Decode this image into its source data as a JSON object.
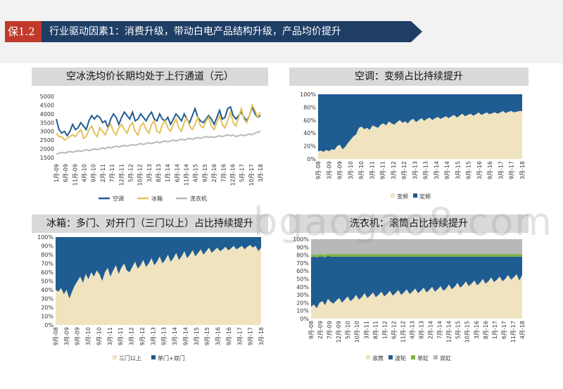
{
  "header": {
    "tag": "保1.2",
    "title": "行业驱动因素1：消费升级，带动白电产品结构升级，产品均价提升"
  },
  "colors": {
    "blue": "#1f5c92",
    "cream": "#efe3c0",
    "yellow": "#e3c15a",
    "gray": "#b8b8b8",
    "green": "#7cb342",
    "navy": "#1f3e66",
    "red": "#c0392b"
  },
  "watermark": "bgaogao8.com",
  "chart_data": [
    {
      "type": "line",
      "title": "空冰洗均价长期均处于上行通道（元）",
      "x_ticks": [
        "1月-09",
        "6月-09",
        "11月-09",
        "4月-10",
        "9月-10",
        "2月-11",
        "7月-11",
        "12月-11",
        "5月-12",
        "10月-12",
        "3月-13",
        "8月-13",
        "1月-14",
        "6月-14",
        "11月-14",
        "4月-15",
        "9月-15",
        "2月-16",
        "7月-16",
        "12月-16",
        "5月-17",
        "10月-17",
        "3月-18"
      ],
      "y_ticks": [
        "5000",
        "4500",
        "4000",
        "3500",
        "3000",
        "2500",
        "2000",
        "1500"
      ],
      "ylim": [
        1500,
        5000
      ],
      "series": [
        {
          "name": "空调",
          "values": [
            3700,
            3100,
            2900,
            3000,
            2750,
            3000,
            3400,
            3100,
            3200,
            3500,
            3300,
            3100,
            3600,
            3900,
            3700,
            3900,
            3800,
            3500,
            3600,
            3200,
            3700,
            4000,
            3800,
            3400,
            3800,
            4100,
            3900,
            3700,
            4100,
            3600,
            3700,
            4000,
            3800,
            3600,
            3900,
            4100,
            3700,
            3600,
            4000,
            3700,
            3600,
            3800,
            3400,
            3700,
            4000,
            3800,
            3600,
            4000,
            3700,
            3500,
            3900,
            4300,
            3800,
            3600,
            3500,
            3700,
            3900,
            3700,
            3400,
            3800,
            4200,
            3700,
            3800,
            4300,
            4400,
            3900,
            3700,
            3900,
            4100,
            3800,
            3600,
            3900,
            4400,
            4000,
            3800,
            3900
          ]
        },
        {
          "name": "冰箱",
          "values": [
            2900,
            2700,
            2700,
            2500,
            2600,
            2700,
            2800,
            2700,
            2900,
            3100,
            2600,
            2700,
            3100,
            3300,
            2900,
            2700,
            3200,
            3000,
            2800,
            3200,
            3400,
            3000,
            2800,
            3200,
            3400,
            3100,
            2900,
            3300,
            3500,
            3000,
            2800,
            3300,
            3500,
            3100,
            2900,
            3400,
            3600,
            3000,
            2900,
            3400,
            3600,
            3200,
            3000,
            3400,
            3700,
            3200,
            3000,
            3500,
            3800,
            3300,
            3100,
            3400,
            3800,
            3300,
            3200,
            3600,
            3800,
            3300,
            3100,
            3500,
            3900,
            3400,
            3200,
            3600,
            4100,
            3500,
            3300,
            3800,
            4300,
            3700,
            3500,
            3900,
            4500,
            4200,
            3800,
            4100
          ]
        },
        {
          "name": "洗衣机",
          "values": [
            1700,
            1750,
            1800,
            1750,
            1800,
            1850,
            1800,
            1850,
            1900,
            1850,
            1900,
            1950,
            1900,
            1950,
            2000,
            1950,
            2000,
            2050,
            2000,
            2100,
            2050,
            2100,
            2150,
            2100,
            2150,
            2200,
            2150,
            2200,
            2250,
            2200,
            2250,
            2300,
            2250,
            2300,
            2350,
            2300,
            2350,
            2400,
            2350,
            2400,
            2450,
            2400,
            2450,
            2500,
            2450,
            2500,
            2550,
            2500,
            2550,
            2600,
            2550,
            2600,
            2650,
            2600,
            2650,
            2700,
            2650,
            2700,
            2650,
            2700,
            2750,
            2700,
            2750,
            2800,
            2750,
            2800,
            2700,
            2750,
            2800,
            2750,
            2800,
            2850,
            2800,
            2900,
            2950,
            3000
          ]
        }
      ]
    },
    {
      "type": "area",
      "title": "空调：变频占比持续提升",
      "x_ticks": [
        "9月-08",
        "3月-09",
        "9月-09",
        "3月-10",
        "9月-10",
        "3月-11",
        "9月-11",
        "3月-12",
        "9月-12",
        "3月-13",
        "9月-13",
        "3月-14",
        "9月-14",
        "3月-15",
        "9月-15",
        "3月-16",
        "9月-16",
        "3月-17",
        "9月-17",
        "3月-18"
      ],
      "y_ticks": [
        "100%",
        "80%",
        "60%",
        "40%",
        "20%",
        "0%"
      ],
      "series": [
        {
          "name": "变频",
          "values": [
            12,
            13,
            11,
            14,
            12,
            15,
            14,
            20,
            22,
            15,
            19,
            25,
            30,
            35,
            38,
            48,
            50,
            46,
            48,
            45,
            52,
            50,
            48,
            53,
            55,
            52,
            58,
            55,
            53,
            57,
            60,
            56,
            58,
            55,
            60,
            62,
            57,
            60,
            63,
            59,
            62,
            64,
            60,
            63,
            65,
            62,
            64,
            66,
            63,
            66,
            68,
            64,
            67,
            70,
            66,
            68,
            70,
            67,
            69,
            72,
            68,
            70,
            72,
            69,
            71,
            72,
            70,
            72,
            74,
            71,
            73,
            74,
            72,
            73,
            74,
            74
          ]
        },
        {
          "name": "定频",
          "values": [
            88,
            87,
            89,
            86,
            88,
            85,
            86,
            80,
            78,
            85,
            81,
            75,
            70,
            65,
            62,
            52,
            50,
            54,
            52,
            55,
            48,
            50,
            52,
            47,
            45,
            48,
            42,
            45,
            47,
            43,
            40,
            44,
            42,
            45,
            40,
            38,
            43,
            40,
            37,
            41,
            38,
            36,
            40,
            37,
            35,
            38,
            36,
            34,
            37,
            34,
            32,
            36,
            33,
            30,
            34,
            32,
            30,
            33,
            31,
            28,
            32,
            30,
            28,
            31,
            29,
            28,
            30,
            28,
            26,
            29,
            27,
            26,
            28,
            27,
            26,
            26
          ]
        }
      ]
    },
    {
      "type": "area",
      "title": "冰箱：多门、对开门（三门以上）占比持续提升",
      "x_ticks": [
        "9月-08",
        "3月-09",
        "9月-09",
        "3月-10",
        "9月-10",
        "3月-11",
        "9月-11",
        "3月-12",
        "9月-12",
        "3月-13",
        "9月-13",
        "3月-14",
        "9月-14",
        "3月-15",
        "9月-15",
        "3月-16",
        "9月-16",
        "3月-17",
        "9月-17",
        "3月-18"
      ],
      "y_ticks": [
        "100%",
        "90%",
        "80%",
        "70%",
        "60%",
        "50%",
        "40%",
        "30%",
        "20%",
        "10%",
        "0%"
      ],
      "series": [
        {
          "name": "三门以上",
          "values": [
            40,
            38,
            42,
            35,
            40,
            30,
            38,
            45,
            50,
            55,
            48,
            58,
            52,
            60,
            55,
            62,
            58,
            50,
            60,
            65,
            55,
            62,
            68,
            58,
            65,
            70,
            62,
            60,
            66,
            72,
            64,
            68,
            74,
            66,
            70,
            76,
            68,
            72,
            78,
            70,
            74,
            80,
            72,
            76,
            82,
            74,
            78,
            84,
            76,
            80,
            85,
            78,
            82,
            86,
            80,
            84,
            88,
            82,
            85,
            88,
            84,
            86,
            89,
            85,
            87,
            90,
            86,
            88,
            90,
            86,
            89,
            91,
            88,
            90,
            84,
            88
          ]
        },
        {
          "name": "单门+双门",
          "values": [
            60,
            62,
            58,
            65,
            60,
            70,
            62,
            55,
            50,
            45,
            52,
            42,
            48,
            40,
            45,
            38,
            42,
            50,
            40,
            35,
            45,
            38,
            32,
            42,
            35,
            30,
            38,
            40,
            34,
            28,
            36,
            32,
            26,
            34,
            30,
            24,
            32,
            28,
            22,
            30,
            26,
            20,
            28,
            24,
            18,
            26,
            22,
            16,
            24,
            20,
            15,
            22,
            18,
            14,
            20,
            16,
            12,
            18,
            15,
            12,
            16,
            14,
            11,
            15,
            13,
            10,
            14,
            12,
            10,
            14,
            11,
            9,
            12,
            10,
            16,
            12
          ]
        }
      ]
    },
    {
      "type": "area",
      "title": "洗衣机：滚筒占比持续提升",
      "x_ticks": [
        "9月-08",
        "2月-09",
        "7月-09",
        "12月-09",
        "5月-10",
        "10月-10",
        "3月-11",
        "8月-11",
        "1月-12",
        "6月-12",
        "11月-12",
        "4月-13",
        "9月-13",
        "2月-14",
        "7月-14",
        "12月-14",
        "5月-15",
        "10月-15",
        "3月-16",
        "8月-16",
        "1月-17",
        "6月-17",
        "11月-17",
        "4月-18"
      ],
      "y_ticks": [
        "100%",
        "90%",
        "80%",
        "70%",
        "60%",
        "50%",
        "40%",
        "30%",
        "20%",
        "10%",
        "0%"
      ],
      "series": [
        {
          "name": "滚筒",
          "values": [
            15,
            18,
            13,
            20,
            22,
            17,
            25,
            21,
            19,
            23,
            26,
            20,
            24,
            28,
            22,
            25,
            30,
            24,
            27,
            32,
            26,
            29,
            33,
            27,
            30,
            34,
            28,
            31,
            35,
            29,
            32,
            36,
            30,
            33,
            37,
            31,
            34,
            38,
            32,
            35,
            39,
            33,
            36,
            40,
            34,
            37,
            41,
            35,
            38,
            43,
            37,
            40,
            45,
            39,
            42,
            47,
            41,
            44,
            48,
            42,
            45,
            50,
            44,
            47,
            52,
            46,
            49,
            53,
            47,
            50,
            55,
            49,
            52,
            56,
            48,
            55
          ]
        },
        {
          "name": "波轮",
          "values": [
            62,
            60,
            64,
            58,
            56,
            60,
            54,
            57,
            59,
            55,
            52,
            58,
            54,
            50,
            56,
            53,
            48,
            54,
            51,
            46,
            52,
            49,
            45,
            51,
            48,
            44,
            50,
            47,
            43,
            49,
            46,
            42,
            48,
            45,
            41,
            47,
            44,
            40,
            46,
            43,
            39,
            45,
            42,
            38,
            44,
            41,
            37,
            43,
            40,
            35,
            41,
            38,
            33,
            39,
            36,
            31,
            37,
            34,
            30,
            36,
            33,
            28,
            34,
            31,
            26,
            32,
            29,
            25,
            31,
            28,
            23,
            29,
            26,
            22,
            30,
            23
          ]
        },
        {
          "name": "单缸",
          "values": [
            3,
            3,
            3,
            3,
            3,
            3,
            3,
            3,
            3,
            3,
            3,
            3,
            3,
            3,
            3,
            3,
            3,
            3,
            3,
            3,
            3,
            3,
            3,
            3,
            3,
            3,
            3,
            3,
            3,
            3,
            3,
            3,
            3,
            3,
            3,
            3,
            3,
            3,
            3,
            3,
            3,
            3,
            3,
            3,
            3,
            3,
            3,
            3,
            3,
            3,
            3,
            3,
            3,
            3,
            3,
            3,
            3,
            3,
            3,
            3,
            3,
            3,
            3,
            3,
            3,
            3,
            3,
            3,
            3,
            3,
            3,
            3,
            3,
            3,
            3,
            3
          ]
        },
        {
          "name": "双缸",
          "values": [
            20,
            19,
            20,
            19,
            19,
            20,
            18,
            19,
            19,
            19,
            19,
            19,
            19,
            19,
            19,
            19,
            19,
            19,
            19,
            19,
            19,
            19,
            19,
            19,
            19,
            19,
            19,
            19,
            19,
            19,
            19,
            19,
            19,
            19,
            19,
            19,
            19,
            19,
            19,
            19,
            19,
            19,
            19,
            19,
            19,
            19,
            19,
            19,
            19,
            19,
            19,
            19,
            19,
            19,
            19,
            19,
            19,
            19,
            19,
            19,
            19,
            19,
            19,
            19,
            19,
            19,
            19,
            19,
            19,
            19,
            19,
            19,
            19,
            19,
            19,
            19
          ]
        }
      ]
    }
  ]
}
